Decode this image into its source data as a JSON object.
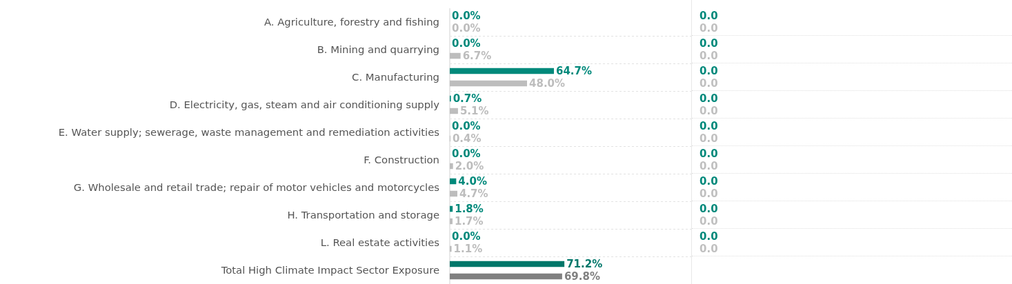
{
  "chart_data": [
    {
      "type": "bar",
      "orientation": "horizontal",
      "categories": [
        "A. Agriculture, forestry and fishing",
        "B. Mining and quarrying",
        "C. Manufacturing",
        "D. Electricity, gas, steam and air conditioning supply",
        "E. Water supply; sewerage, waste management and remediation activities",
        "F. Construction",
        "G. Wholesale and retail trade; repair of motor vehicles and motorcycles",
        "H. Transportation and storage",
        "L. Real estate activities",
        "Total High Climate Impact Sector Exposure"
      ],
      "series": [
        {
          "colors": [
            "#00897b",
            "#00897b",
            "#00897b",
            "#00897b",
            "#00897b",
            "#00897b",
            "#00897b",
            "#00897b",
            "#00897b",
            "#00776a"
          ],
          "values": [
            0.0,
            0.0,
            64.7,
            0.7,
            0.0,
            0.0,
            4.0,
            1.8,
            0.0,
            71.2
          ],
          "value_labels": [
            "0.0%",
            "0.0%",
            "64.7%",
            "0.7%",
            "0.0%",
            "0.0%",
            "4.0%",
            "1.8%",
            "0.0%",
            "71.2%"
          ]
        },
        {
          "colors": [
            "#bdbdbd",
            "#bdbdbd",
            "#bdbdbd",
            "#bdbdbd",
            "#bdbdbd",
            "#bdbdbd",
            "#bdbdbd",
            "#bdbdbd",
            "#bdbdbd",
            "#808080"
          ],
          "values": [
            0.0,
            6.7,
            48.0,
            5.1,
            0.4,
            2.0,
            4.7,
            1.7,
            1.1,
            69.8
          ],
          "value_labels": [
            "0.0%",
            "6.7%",
            "48.0%",
            "5.1%",
            "0.4%",
            "2.0%",
            "4.7%",
            "1.7%",
            "1.1%",
            "69.8%"
          ]
        }
      ],
      "xlim": [
        0,
        150
      ],
      "tick_labels": "y",
      "grid": "y"
    },
    {
      "type": "other",
      "annotations": [
        "0.0",
        "0.0",
        "0.0",
        "0.0",
        "0.0",
        "0.0",
        "0.0",
        "0.0",
        "0.0",
        "0.0",
        "0.0",
        "0.0",
        "0.0",
        "0.0",
        "0.0",
        "0.0",
        "0.0",
        "0.0"
      ]
    }
  ]
}
